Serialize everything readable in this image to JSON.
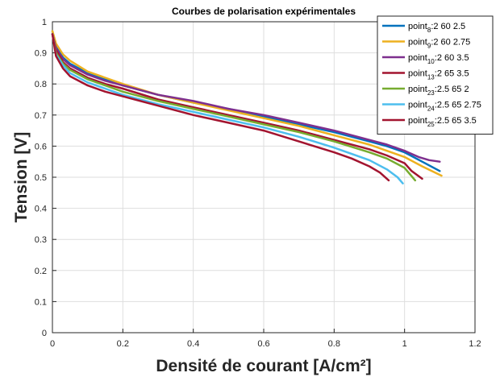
{
  "chart_data": {
    "type": "line",
    "title": "Courbes de polarisation expérimentales",
    "xlabel": "Densité de courant [A/cm²]",
    "ylabel": "Tension [V]",
    "xlim": [
      0,
      1.2
    ],
    "ylim": [
      0,
      1
    ],
    "xticks": [
      "0",
      "0.2",
      "0.4",
      "0.6",
      "0.8",
      "1",
      "1.2"
    ],
    "yticks": [
      "0",
      "0.1",
      "0.2",
      "0.3",
      "0.4",
      "0.5",
      "0.6",
      "0.7",
      "0.8",
      "0.9",
      "1"
    ],
    "grid": true,
    "legend_position": "top-right",
    "series": [
      {
        "name_base": "point",
        "name_sub": "8",
        "name_rest": ":2 60 2.5",
        "color": "#0072BD",
        "x": [
          0,
          0.01,
          0.03,
          0.05,
          0.1,
          0.15,
          0.2,
          0.3,
          0.4,
          0.5,
          0.6,
          0.7,
          0.8,
          0.9,
          0.95,
          1.0,
          1.05,
          1.1
        ],
        "y": [
          0.97,
          0.92,
          0.885,
          0.865,
          0.835,
          0.815,
          0.795,
          0.765,
          0.74,
          0.72,
          0.695,
          0.67,
          0.645,
          0.615,
          0.6,
          0.58,
          0.55,
          0.52
        ]
      },
      {
        "name_base": "point",
        "name_sub": "9",
        "name_rest": ":2 60 2.75",
        "color": "#EDB120",
        "x": [
          0,
          0.01,
          0.03,
          0.05,
          0.1,
          0.15,
          0.2,
          0.3,
          0.4,
          0.5,
          0.6,
          0.7,
          0.8,
          0.9,
          0.95,
          1.0,
          1.05,
          1.105
        ],
        "y": [
          0.97,
          0.93,
          0.895,
          0.875,
          0.84,
          0.82,
          0.8,
          0.765,
          0.74,
          0.715,
          0.69,
          0.665,
          0.635,
          0.605,
          0.585,
          0.565,
          0.535,
          0.505
        ]
      },
      {
        "name_base": "point",
        "name_sub": "10",
        "name_rest": ":2 60 3.5",
        "color": "#7E2F8E",
        "x": [
          0,
          0.01,
          0.03,
          0.05,
          0.1,
          0.15,
          0.2,
          0.3,
          0.4,
          0.5,
          0.6,
          0.7,
          0.8,
          0.9,
          0.95,
          1.0,
          1.04,
          1.07,
          1.1
        ],
        "y": [
          0.96,
          0.915,
          0.88,
          0.86,
          0.83,
          0.81,
          0.795,
          0.765,
          0.745,
          0.72,
          0.7,
          0.675,
          0.65,
          0.62,
          0.605,
          0.585,
          0.565,
          0.555,
          0.55
        ]
      },
      {
        "name_base": "point",
        "name_sub": "13",
        "name_rest": ":2 65 3.5",
        "color": "#A2142F",
        "x": [
          0,
          0.01,
          0.03,
          0.05,
          0.1,
          0.15,
          0.2,
          0.3,
          0.4,
          0.5,
          0.6,
          0.7,
          0.8,
          0.9,
          0.95,
          1.0,
          1.02,
          1.05
        ],
        "y": [
          0.96,
          0.91,
          0.87,
          0.85,
          0.82,
          0.8,
          0.785,
          0.75,
          0.725,
          0.7,
          0.675,
          0.65,
          0.62,
          0.59,
          0.57,
          0.545,
          0.52,
          0.495
        ]
      },
      {
        "name_base": "point",
        "name_sub": "23",
        "name_rest": ":2.5 65 2",
        "color": "#77AC30",
        "x": [
          0,
          0.01,
          0.03,
          0.05,
          0.1,
          0.15,
          0.2,
          0.3,
          0.4,
          0.5,
          0.6,
          0.7,
          0.8,
          0.9,
          0.95,
          1.0,
          1.03
        ],
        "y": [
          0.96,
          0.9,
          0.865,
          0.845,
          0.815,
          0.795,
          0.775,
          0.745,
          0.72,
          0.695,
          0.67,
          0.645,
          0.615,
          0.58,
          0.56,
          0.53,
          0.49
        ]
      },
      {
        "name_base": "point",
        "name_sub": "24",
        "name_rest": ":2.5 65 2.75",
        "color": "#4DBEEE",
        "x": [
          0,
          0.01,
          0.03,
          0.05,
          0.1,
          0.15,
          0.2,
          0.3,
          0.4,
          0.5,
          0.6,
          0.7,
          0.8,
          0.85,
          0.9,
          0.95,
          0.98,
          0.995
        ],
        "y": [
          0.96,
          0.895,
          0.86,
          0.835,
          0.805,
          0.785,
          0.765,
          0.735,
          0.71,
          0.685,
          0.66,
          0.63,
          0.595,
          0.575,
          0.555,
          0.525,
          0.5,
          0.48
        ]
      },
      {
        "name_base": "point",
        "name_sub": "25",
        "name_rest": ":2.5 65 3.5",
        "color": "#A2142F",
        "x": [
          0,
          0.01,
          0.03,
          0.05,
          0.1,
          0.15,
          0.2,
          0.3,
          0.4,
          0.5,
          0.6,
          0.7,
          0.8,
          0.85,
          0.9,
          0.93,
          0.955
        ],
        "y": [
          0.96,
          0.89,
          0.85,
          0.825,
          0.795,
          0.775,
          0.76,
          0.73,
          0.7,
          0.675,
          0.65,
          0.615,
          0.58,
          0.56,
          0.535,
          0.515,
          0.49
        ]
      }
    ]
  }
}
